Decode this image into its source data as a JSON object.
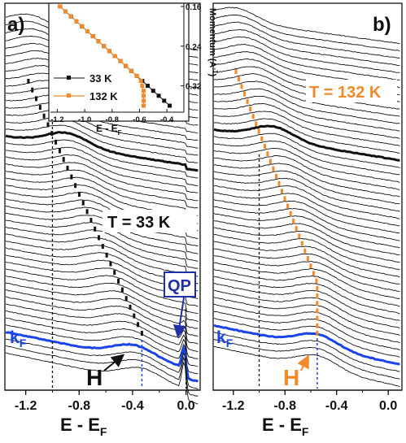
{
  "colors": {
    "black": "#111111",
    "blue": "#1a44e8",
    "orange": "#f08a2a",
    "dark_blue": "#1f2fa8"
  },
  "panel_a": {
    "letter": "a)",
    "temp_label": "T = 33 K",
    "kf": "k",
    "kf_sub": "F",
    "qp_label": "QP",
    "h_label": "H",
    "x_ticks": [
      "-1.2",
      "-0.8",
      "-0.4",
      "0.0"
    ],
    "x_title": "E - E",
    "x_title_sub": "F"
  },
  "panel_b": {
    "letter": "b)",
    "temp_label": "T = 132 K",
    "kf": "k",
    "kf_sub": "F",
    "h_label": "H",
    "x_ticks": [
      "-1.2",
      "-0.8",
      "-0.4",
      "0.0"
    ],
    "x_title": "E - E",
    "x_title_sub": "F"
  },
  "inset": {
    "y_title": "Momentum (A",
    "y_title_sup": "-1",
    "y_title_end": ")",
    "x_title": "E - E",
    "x_title_sub": "F",
    "x_ticks": [
      "-1.2",
      "-1.0",
      "-0.8",
      "-0.6",
      "-0.4"
    ],
    "y_ticks": [
      "0.16",
      "0.24",
      "0.32"
    ],
    "legend_33": "33 K",
    "legend_132": "132 K"
  },
  "chart_data": [
    {
      "type": "line",
      "title": "a)",
      "xlabel": "E - EF",
      "xlim": [
        -1.35,
        0.1
      ],
      "x_ticks": [
        -1.2,
        -0.8,
        -0.4,
        0.0
      ],
      "series": [
        {
          "name": "T = 33 K",
          "description_values": "stacked EDCs, 45 momentum cuts"
        }
      ],
      "annotations": [
        "k_F",
        "QP",
        "H",
        "T = 33 K"
      ],
      "reference_lines_x": [
        -1.0,
        -0.33,
        0.0
      ]
    },
    {
      "type": "line",
      "title": "b)",
      "xlabel": "E - EF",
      "xlim": [
        -1.35,
        0.1
      ],
      "x_ticks": [
        -1.2,
        -0.8,
        -0.4,
        0.0
      ],
      "series": [
        {
          "name": "T = 132 K"
        }
      ],
      "annotations": [
        "k_F",
        "H",
        "T = 132 K"
      ],
      "reference_lines_x": [
        -1.0,
        -0.55
      ]
    },
    {
      "type": "scatter",
      "title": "inset",
      "xlabel": "E - EF",
      "ylabel": "Momentum (A-1)",
      "xlim": [
        -1.25,
        -0.3
      ],
      "ylim": [
        0.16,
        0.36
      ],
      "y_inverted": true,
      "series": [
        {
          "name": "33 K",
          "x": [
            -1.18,
            -1.14,
            -1.1,
            -1.06,
            -1.02,
            -0.98,
            -0.94,
            -0.9,
            -0.86,
            -0.82,
            -0.78,
            -0.74,
            -0.7,
            -0.66,
            -0.62,
            -0.58,
            -0.54,
            -0.5,
            -0.46,
            -0.42,
            -0.38
          ],
          "y": [
            0.16,
            0.17,
            0.18,
            0.19,
            0.2,
            0.21,
            0.22,
            0.23,
            0.24,
            0.25,
            0.26,
            0.27,
            0.28,
            0.29,
            0.3,
            0.31,
            0.32,
            0.33,
            0.34,
            0.35,
            0.36
          ]
        },
        {
          "name": "132 K",
          "x": [
            -1.18,
            -1.14,
            -1.1,
            -1.06,
            -1.02,
            -0.98,
            -0.94,
            -0.9,
            -0.86,
            -0.82,
            -0.78,
            -0.74,
            -0.7,
            -0.66,
            -0.62,
            -0.59,
            -0.58,
            -0.57,
            -0.57,
            -0.57,
            -0.57
          ],
          "y": [
            0.16,
            0.17,
            0.18,
            0.19,
            0.2,
            0.21,
            0.22,
            0.23,
            0.24,
            0.25,
            0.26,
            0.27,
            0.28,
            0.29,
            0.3,
            0.31,
            0.32,
            0.33,
            0.34,
            0.35,
            0.36
          ]
        }
      ]
    }
  ]
}
